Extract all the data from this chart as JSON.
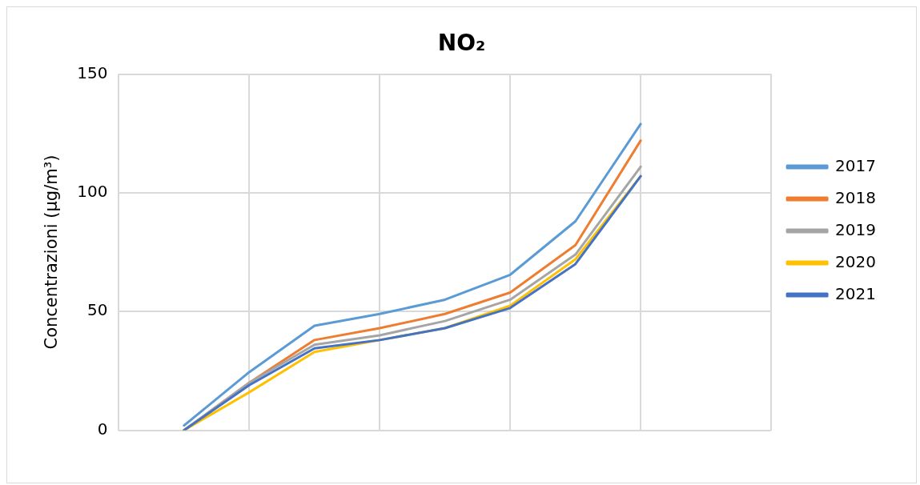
{
  "chart_data": {
    "type": "line",
    "title": "NO₂",
    "ylabel": "Concentrazioni (µg/m³)",
    "categories": [
      null,
      null,
      null,
      null,
      null,
      null,
      null,
      null,
      null,
      null,
      null
    ],
    "ylim": [
      0,
      150
    ],
    "yticks": [
      0,
      50,
      100,
      150
    ],
    "grid": true,
    "legend": "right",
    "marker": "none",
    "line_style": "solid",
    "series": [
      {
        "name": "2017",
        "color": "#5b9bd5",
        "values": [
          null,
          2,
          24.5,
          44,
          49,
          55,
          65.5,
          88,
          129,
          null,
          null
        ]
      },
      {
        "name": "2018",
        "color": "#ed7d31",
        "values": [
          null,
          0,
          20,
          38,
          43,
          49,
          58,
          78,
          122,
          null,
          null
        ]
      },
      {
        "name": "2019",
        "color": "#a5a5a5",
        "values": [
          null,
          0,
          20,
          36,
          40,
          46,
          55,
          74,
          111,
          null,
          null
        ]
      },
      {
        "name": "2020",
        "color": "#ffc000",
        "values": [
          null,
          0,
          16,
          33,
          38,
          43,
          52.5,
          72,
          107,
          null,
          null
        ]
      },
      {
        "name": "2021",
        "color": "#4472c4",
        "values": [
          null,
          0,
          19,
          34.5,
          38,
          43,
          51.5,
          70,
          107,
          null,
          null
        ]
      }
    ]
  }
}
